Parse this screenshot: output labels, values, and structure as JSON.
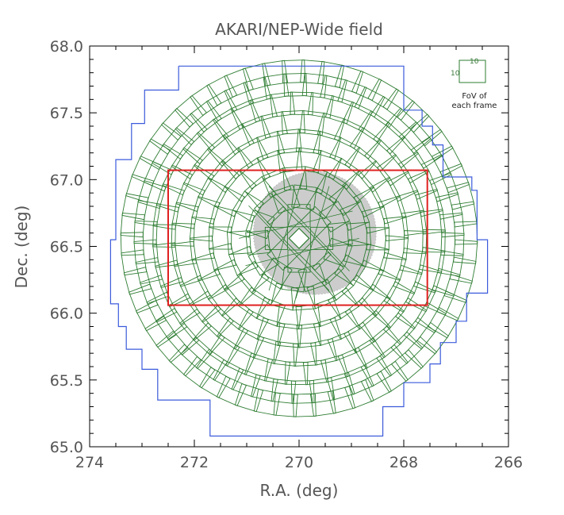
{
  "chart_data": {
    "type": "scatter",
    "title": "AKARI/NEP-Wide field",
    "xlabel": "R.A. (deg)",
    "ylabel": "Dec. (deg)",
    "x_reversed": true,
    "xlim": [
      274,
      266
    ],
    "ylim": [
      65.0,
      68.0
    ],
    "x_ticks": [
      "274",
      "272",
      "270",
      "268",
      "266"
    ],
    "y_ticks": [
      "65.0",
      "65.5",
      "66.0",
      "66.5",
      "67.0",
      "67.5",
      "68.0"
    ],
    "grid": false,
    "colors": {
      "frames": "#2e7d32",
      "survey_boundary": "#3b5bdb",
      "rectangle": "#e02020",
      "shaded_region": "#cccccc",
      "frame_dots": "#444444"
    },
    "survey_boundary": {
      "name": "survey boundary",
      "points": [
        [
          272.3,
          67.85
        ],
        [
          268.0,
          67.85
        ],
        [
          268.0,
          67.52
        ],
        [
          267.65,
          67.52
        ],
        [
          267.65,
          67.4
        ],
        [
          267.45,
          67.4
        ],
        [
          267.45,
          67.26
        ],
        [
          267.25,
          67.26
        ],
        [
          267.25,
          67.02
        ],
        [
          266.7,
          67.02
        ],
        [
          266.7,
          66.92
        ],
        [
          266.6,
          66.92
        ],
        [
          266.6,
          66.55
        ],
        [
          266.4,
          66.55
        ],
        [
          266.4,
          66.15
        ],
        [
          266.8,
          66.15
        ],
        [
          266.8,
          65.94
        ],
        [
          267.0,
          65.94
        ],
        [
          267.0,
          65.78
        ],
        [
          267.3,
          65.78
        ],
        [
          267.3,
          65.62
        ],
        [
          267.5,
          65.62
        ],
        [
          267.5,
          65.48
        ],
        [
          268.0,
          65.48
        ],
        [
          268.0,
          65.3
        ],
        [
          268.4,
          65.3
        ],
        [
          268.4,
          65.08
        ],
        [
          271.7,
          65.08
        ],
        [
          271.7,
          65.35
        ],
        [
          272.7,
          65.35
        ],
        [
          272.7,
          65.58
        ],
        [
          273.0,
          65.58
        ],
        [
          273.0,
          65.73
        ],
        [
          273.3,
          65.73
        ],
        [
          273.3,
          65.9
        ],
        [
          273.45,
          65.9
        ],
        [
          273.45,
          66.07
        ],
        [
          273.6,
          66.07
        ],
        [
          273.6,
          66.55
        ],
        [
          273.5,
          66.55
        ],
        [
          273.5,
          67.15
        ],
        [
          273.2,
          67.15
        ],
        [
          273.2,
          67.42
        ],
        [
          272.95,
          67.42
        ],
        [
          272.95,
          67.67
        ],
        [
          272.3,
          67.67
        ],
        [
          272.3,
          67.85
        ]
      ]
    },
    "rectangle": {
      "name": "rectangle",
      "ra_range": [
        272.5,
        267.55
      ],
      "dec_range": [
        66.06,
        67.07
      ]
    },
    "shaded_region": {
      "name": "shaded region",
      "center": [
        269.7,
        66.6
      ],
      "radius_deg": 0.46
    },
    "frame_rings": {
      "name": "frames",
      "center": [
        270.0,
        66.56
      ],
      "frame_size_arcmin": 10,
      "ring_radii_deg": [
        0.17,
        0.31,
        0.45,
        0.59,
        0.73,
        0.87,
        1.01,
        1.15,
        1.25
      ],
      "frames_per_ring": [
        8,
        14,
        20,
        26,
        32,
        38,
        44,
        50,
        56
      ]
    },
    "legend": {
      "fov_size": "10",
      "caption_line1": "FoV of",
      "caption_line2": "each frame",
      "placement": "top-right"
    }
  }
}
